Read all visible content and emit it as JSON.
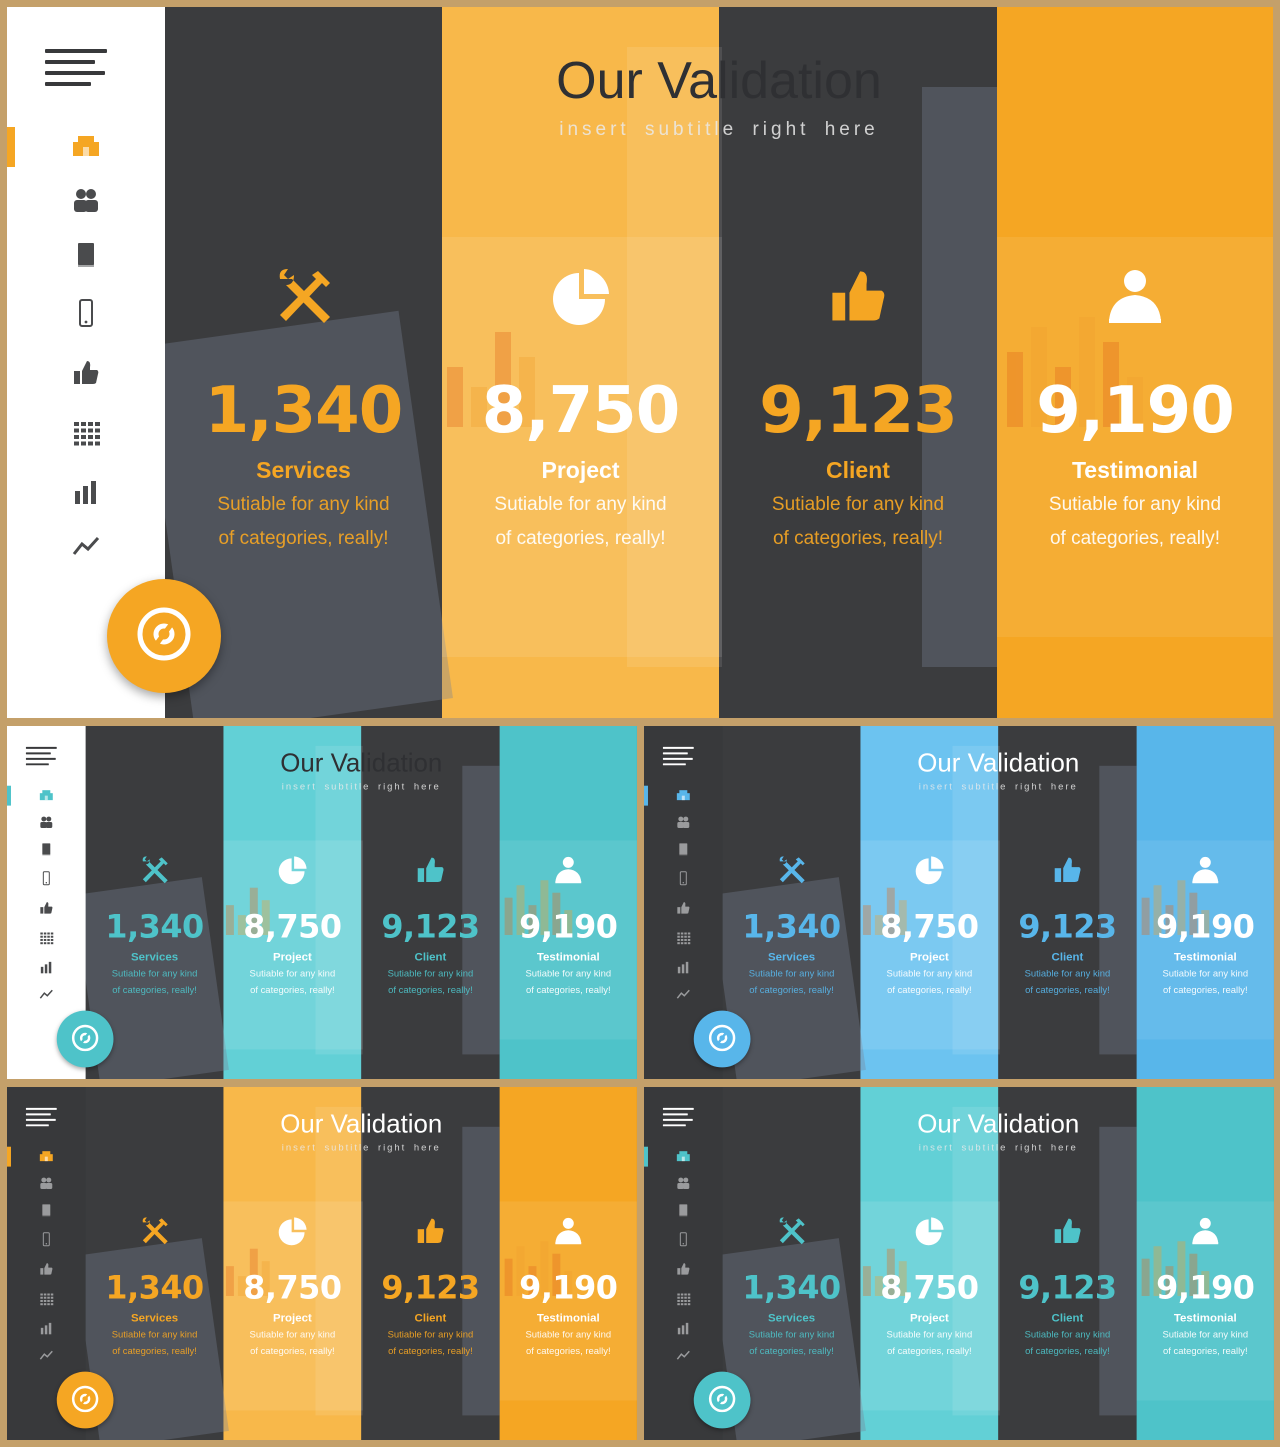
{
  "presentation": {
    "title": "Our Validation",
    "subtitle": "insert subtitle right here"
  },
  "stats": [
    {
      "icon": "wrench-screwdriver-icon",
      "value": "1,340",
      "label": "Services",
      "desc_line1": "Sutiable for any kind",
      "desc_line2": "of categories, really!"
    },
    {
      "icon": "pie-chart-icon",
      "value": "8,750",
      "label": "Project",
      "desc_line1": "Sutiable for any kind",
      "desc_line2": "of categories, really!"
    },
    {
      "icon": "thumbs-up-icon",
      "value": "9,123",
      "label": "Client",
      "desc_line1": "Sutiable for any kind",
      "desc_line2": "of categories, really!"
    },
    {
      "icon": "businessman-icon",
      "value": "9,190",
      "label": "Testimonial",
      "desc_line1": "Sutiable for any kind",
      "desc_line2": "of categories, really!"
    }
  ],
  "nav_icons": [
    "home-icon",
    "users-icon",
    "book-icon",
    "phone-icon",
    "thumbs-up-icon",
    "grid-icon",
    "bar-chart-icon",
    "trend-line-icon"
  ],
  "fab_icon": "disc-icon",
  "variants": [
    {
      "name": "orange-light",
      "accent": "#f5a623",
      "secondary": "#f8b84a",
      "sidebar": "light"
    },
    {
      "name": "teal-light",
      "accent": "#4ec3c9",
      "secondary": "#62d0d6",
      "sidebar": "light"
    },
    {
      "name": "blue-dark",
      "accent": "#58b6ea",
      "secondary": "#6cc3f0",
      "sidebar": "dark"
    },
    {
      "name": "orange-dark",
      "accent": "#f5a623",
      "secondary": "#f8b84a",
      "sidebar": "dark"
    },
    {
      "name": "teal-dark",
      "accent": "#4ec3c9",
      "secondary": "#62d0d6",
      "sidebar": "dark"
    }
  ],
  "colors": {
    "frame": "#c4a06a",
    "dark_column": "#3b3c3e",
    "text_dark": "#2f3033",
    "text_light": "#ffffff"
  }
}
